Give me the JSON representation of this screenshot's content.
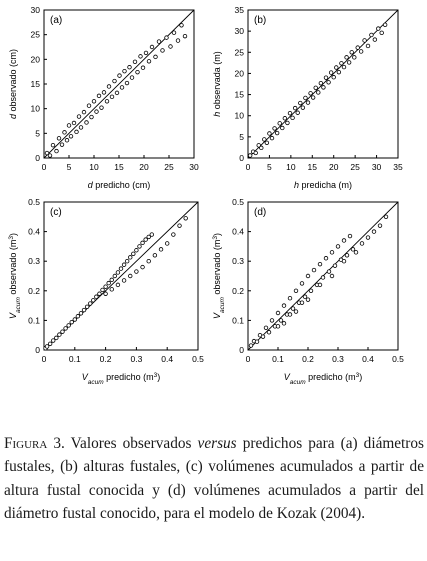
{
  "chart_data": [
    {
      "type": "scatter",
      "panel_label": "(a)",
      "xlabel_italic": "d",
      "xlabel_rest": " predicho (cm)",
      "ylabel_italic": "d",
      "ylabel_rest": " observado (cm)",
      "xlim": [
        0,
        30
      ],
      "ylim": [
        0,
        30
      ],
      "xticks": [
        0,
        5,
        10,
        15,
        20,
        25,
        30
      ],
      "yticks": [
        0,
        5,
        10,
        15,
        20,
        25,
        30
      ],
      "reference_line": "1:1",
      "tick_decimals": 0,
      "points": [
        [
          0.6,
          1.0
        ],
        [
          1.2,
          0.5
        ],
        [
          1.8,
          2.6
        ],
        [
          2.5,
          1.4
        ],
        [
          3.0,
          4.0
        ],
        [
          3.6,
          2.7
        ],
        [
          4.1,
          5.2
        ],
        [
          4.6,
          3.6
        ],
        [
          5.0,
          6.6
        ],
        [
          5.4,
          4.4
        ],
        [
          6.0,
          7.1
        ],
        [
          6.5,
          5.3
        ],
        [
          7.0,
          8.4
        ],
        [
          7.4,
          6.2
        ],
        [
          8.0,
          9.3
        ],
        [
          8.5,
          7.2
        ],
        [
          9.0,
          10.6
        ],
        [
          9.5,
          8.3
        ],
        [
          10.0,
          11.5
        ],
        [
          10.5,
          9.4
        ],
        [
          11.0,
          12.6
        ],
        [
          11.5,
          10.2
        ],
        [
          12.0,
          13.3
        ],
        [
          12.6,
          11.5
        ],
        [
          13.0,
          14.5
        ],
        [
          13.6,
          12.4
        ],
        [
          14.1,
          15.6
        ],
        [
          14.6,
          13.2
        ],
        [
          15.1,
          16.7
        ],
        [
          15.6,
          14.3
        ],
        [
          16.1,
          17.6
        ],
        [
          16.6,
          15.2
        ],
        [
          17.1,
          18.4
        ],
        [
          17.6,
          16.3
        ],
        [
          18.2,
          19.5
        ],
        [
          18.7,
          17.4
        ],
        [
          19.3,
          20.6
        ],
        [
          19.8,
          18.3
        ],
        [
          20.4,
          21.3
        ],
        [
          21.0,
          19.6
        ],
        [
          21.6,
          22.5
        ],
        [
          22.3,
          20.5
        ],
        [
          23.0,
          23.6
        ],
        [
          23.7,
          21.8
        ],
        [
          24.5,
          24.4
        ],
        [
          25.3,
          22.6
        ],
        [
          26.0,
          25.4
        ],
        [
          26.8,
          23.8
        ],
        [
          27.5,
          26.9
        ],
        [
          28.2,
          24.7
        ]
      ]
    },
    {
      "type": "scatter",
      "panel_label": "(b)",
      "xlabel_italic": "h",
      "xlabel_rest": " predicha (m)",
      "ylabel_italic": "h",
      "ylabel_rest": " observada (m)",
      "xlim": [
        0,
        35
      ],
      "ylim": [
        0,
        35
      ],
      "xticks": [
        0,
        5,
        10,
        15,
        20,
        25,
        30,
        35
      ],
      "yticks": [
        0,
        5,
        10,
        15,
        20,
        25,
        30,
        35
      ],
      "reference_line": "1:1",
      "tick_decimals": 0,
      "points": [
        [
          0.5,
          0.6
        ],
        [
          1.2,
          1.5
        ],
        [
          1.8,
          1.2
        ],
        [
          2.5,
          3.0
        ],
        [
          3.1,
          2.4
        ],
        [
          3.8,
          4.4
        ],
        [
          4.4,
          3.6
        ],
        [
          5.0,
          5.8
        ],
        [
          5.6,
          4.7
        ],
        [
          6.2,
          7.0
        ],
        [
          6.8,
          5.9
        ],
        [
          7.4,
          8.2
        ],
        [
          8.0,
          7.1
        ],
        [
          8.6,
          9.4
        ],
        [
          9.2,
          8.3
        ],
        [
          9.8,
          10.6
        ],
        [
          10.4,
          9.5
        ],
        [
          11.0,
          11.8
        ],
        [
          11.6,
          10.7
        ],
        [
          12.2,
          13.0
        ],
        [
          12.8,
          11.9
        ],
        [
          13.4,
          14.2
        ],
        [
          14.0,
          13.1
        ],
        [
          14.6,
          15.3
        ],
        [
          15.2,
          14.3
        ],
        [
          15.8,
          16.6
        ],
        [
          16.4,
          15.5
        ],
        [
          17.0,
          17.7
        ],
        [
          17.6,
          16.7
        ],
        [
          18.2,
          19.0
        ],
        [
          18.8,
          17.9
        ],
        [
          19.4,
          20.2
        ],
        [
          20.0,
          19.1
        ],
        [
          20.6,
          21.4
        ],
        [
          21.2,
          20.3
        ],
        [
          21.8,
          22.4
        ],
        [
          22.4,
          21.5
        ],
        [
          23.0,
          23.8
        ],
        [
          23.6,
          22.6
        ],
        [
          24.2,
          25.0
        ],
        [
          24.8,
          23.8
        ],
        [
          25.6,
          26.1
        ],
        [
          26.4,
          25.2
        ],
        [
          27.2,
          27.8
        ],
        [
          28.0,
          26.5
        ],
        [
          28.8,
          29.1
        ],
        [
          29.6,
          28.0
        ],
        [
          30.4,
          30.6
        ],
        [
          31.2,
          29.6
        ],
        [
          32.0,
          31.5
        ]
      ]
    },
    {
      "type": "scatter",
      "panel_label": "(c)",
      "xlabel_italic": "V",
      "xlabel_sub": "acum",
      "xlabel_rest": " predicho (m",
      "ylabel_italic": "V",
      "ylabel_sub": "acum",
      "ylabel_rest": " observado (m",
      "unit_sup": "3",
      "unit_close": ")",
      "xlim": [
        0,
        0.5
      ],
      "ylim": [
        0,
        0.5
      ],
      "xticks": [
        0,
        0.1,
        0.2,
        0.3,
        0.4,
        0.5
      ],
      "yticks": [
        0,
        0.1,
        0.2,
        0.3,
        0.4,
        0.5
      ],
      "reference_line": "1:1",
      "tick_decimals": 1,
      "points": [
        [
          0.005,
          0.006
        ],
        [
          0.01,
          0.012
        ],
        [
          0.02,
          0.021
        ],
        [
          0.03,
          0.032
        ],
        [
          0.04,
          0.041
        ],
        [
          0.05,
          0.052
        ],
        [
          0.06,
          0.062
        ],
        [
          0.07,
          0.073
        ],
        [
          0.08,
          0.083
        ],
        [
          0.09,
          0.094
        ],
        [
          0.1,
          0.103
        ],
        [
          0.11,
          0.114
        ],
        [
          0.12,
          0.124
        ],
        [
          0.13,
          0.135
        ],
        [
          0.14,
          0.146
        ],
        [
          0.15,
          0.157
        ],
        [
          0.16,
          0.168
        ],
        [
          0.17,
          0.18
        ],
        [
          0.18,
          0.19
        ],
        [
          0.19,
          0.203
        ],
        [
          0.2,
          0.214
        ],
        [
          0.21,
          0.226
        ],
        [
          0.22,
          0.237
        ],
        [
          0.23,
          0.25
        ],
        [
          0.24,
          0.262
        ],
        [
          0.25,
          0.275
        ],
        [
          0.26,
          0.288
        ],
        [
          0.27,
          0.3
        ],
        [
          0.28,
          0.313
        ],
        [
          0.29,
          0.325
        ],
        [
          0.3,
          0.337
        ],
        [
          0.31,
          0.35
        ],
        [
          0.32,
          0.362
        ],
        [
          0.33,
          0.373
        ],
        [
          0.34,
          0.382
        ],
        [
          0.35,
          0.39
        ],
        [
          0.2,
          0.19
        ],
        [
          0.22,
          0.205
        ],
        [
          0.24,
          0.22
        ],
        [
          0.26,
          0.235
        ],
        [
          0.28,
          0.25
        ],
        [
          0.3,
          0.265
        ],
        [
          0.32,
          0.28
        ],
        [
          0.34,
          0.3
        ],
        [
          0.36,
          0.32
        ],
        [
          0.38,
          0.34
        ],
        [
          0.4,
          0.36
        ],
        [
          0.42,
          0.39
        ],
        [
          0.44,
          0.42
        ],
        [
          0.46,
          0.445
        ]
      ]
    },
    {
      "type": "scatter",
      "panel_label": "(d)",
      "xlabel_italic": "V",
      "xlabel_sub": "acum",
      "xlabel_rest": " predicho (m",
      "ylabel_italic": "V",
      "ylabel_sub": "acum",
      "ylabel_rest": " observado (m",
      "unit_sup": "3",
      "unit_close": ")",
      "xlim": [
        0,
        0.5
      ],
      "ylim": [
        0,
        0.5
      ],
      "xticks": [
        0,
        0.1,
        0.2,
        0.3,
        0.4,
        0.5
      ],
      "yticks": [
        0,
        0.1,
        0.2,
        0.3,
        0.4,
        0.5
      ],
      "reference_line": "1:1",
      "tick_decimals": 1,
      "points": [
        [
          0.01,
          0.015
        ],
        [
          0.02,
          0.03
        ],
        [
          0.03,
          0.028
        ],
        [
          0.04,
          0.05
        ],
        [
          0.05,
          0.045
        ],
        [
          0.06,
          0.075
        ],
        [
          0.07,
          0.06
        ],
        [
          0.08,
          0.1
        ],
        [
          0.09,
          0.08
        ],
        [
          0.1,
          0.125
        ],
        [
          0.11,
          0.1
        ],
        [
          0.12,
          0.15
        ],
        [
          0.13,
          0.12
        ],
        [
          0.14,
          0.175
        ],
        [
          0.15,
          0.14
        ],
        [
          0.16,
          0.2
        ],
        [
          0.17,
          0.16
        ],
        [
          0.18,
          0.225
        ],
        [
          0.19,
          0.18
        ],
        [
          0.2,
          0.25
        ],
        [
          0.21,
          0.2
        ],
        [
          0.22,
          0.27
        ],
        [
          0.23,
          0.22
        ],
        [
          0.24,
          0.29
        ],
        [
          0.25,
          0.245
        ],
        [
          0.26,
          0.31
        ],
        [
          0.27,
          0.265
        ],
        [
          0.28,
          0.33
        ],
        [
          0.29,
          0.285
        ],
        [
          0.3,
          0.35
        ],
        [
          0.31,
          0.305
        ],
        [
          0.32,
          0.37
        ],
        [
          0.33,
          0.32
        ],
        [
          0.34,
          0.385
        ],
        [
          0.35,
          0.34
        ],
        [
          0.1,
          0.08
        ],
        [
          0.12,
          0.09
        ],
        [
          0.14,
          0.12
        ],
        [
          0.16,
          0.13
        ],
        [
          0.18,
          0.16
        ],
        [
          0.2,
          0.17
        ],
        [
          0.24,
          0.22
        ],
        [
          0.28,
          0.25
        ],
        [
          0.32,
          0.3
        ],
        [
          0.36,
          0.33
        ],
        [
          0.38,
          0.36
        ],
        [
          0.4,
          0.38
        ],
        [
          0.42,
          0.4
        ],
        [
          0.44,
          0.42
        ],
        [
          0.46,
          0.45
        ]
      ]
    }
  ],
  "caption": {
    "label": "Figura 3.",
    "text_1": " Valores observados ",
    "versus": "versus",
    "text_2": " predichos para (a) diámetros fustales, (b) alturas fustales, (c) volúmenes acumulados a partir de altura fustal conocida y (d) volúmenes acumulados a partir del diámetro fustal conocido, para el modelo de Kozak (2004)."
  }
}
